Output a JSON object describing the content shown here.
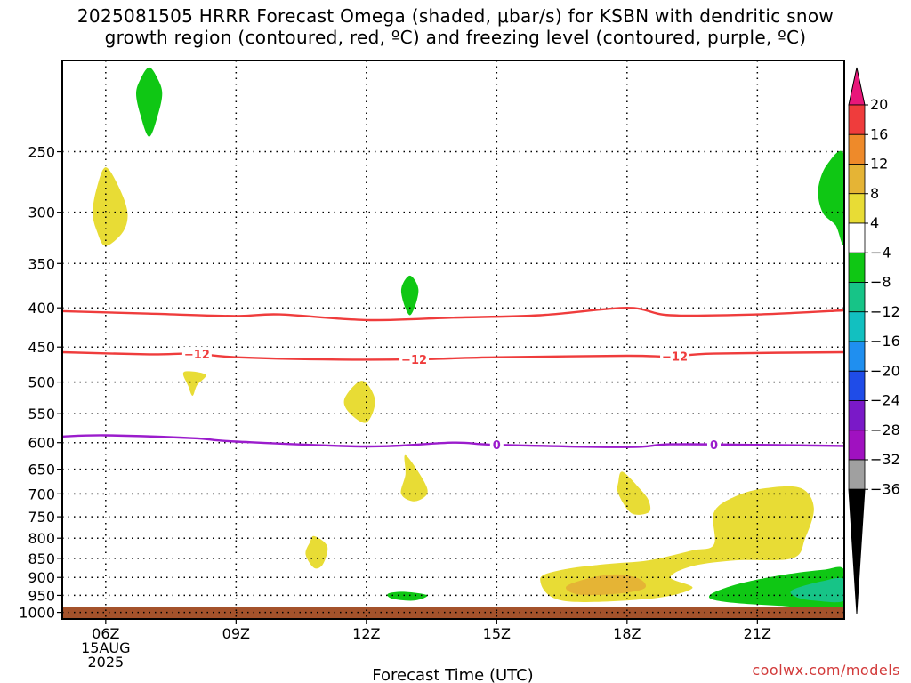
{
  "title": {
    "line1": "2025081505 HRRR Forecast Omega (shaded, μbar/s) for KSBN with dendritic snow",
    "line2": "growth region (contoured, red, ºC) and freezing level (contoured, purple, ºC)"
  },
  "credit": "coolwx.com/models",
  "chart_data": {
    "type": "contour",
    "xlabel": "Forecast Time (UTC)",
    "x_ticks": [
      "06Z",
      "09Z",
      "12Z",
      "15Z",
      "18Z",
      "21Z"
    ],
    "x_date_label": [
      "15AUG",
      "2025"
    ],
    "y_ticks": [
      250,
      300,
      350,
      400,
      450,
      500,
      550,
      600,
      650,
      700,
      750,
      800,
      850,
      900,
      950,
      1000
    ],
    "y_scale": "log",
    "y_inverted": true,
    "x_range_hours": [
      5.0,
      23.0
    ],
    "y_range_hpa": [
      190,
      1020
    ],
    "grid": true,
    "colorbar": {
      "labels": [
        "20",
        "16",
        "12",
        "8",
        "4",
        "−4",
        "−8",
        "−12",
        "−16",
        "−20",
        "−24",
        "−28",
        "−32",
        "−36"
      ],
      "colors": [
        "#e8177a",
        "#ef3c3c",
        "#ee8a2a",
        "#e5b435",
        "#e8dc35",
        "#ffffff",
        "#0fc714",
        "#17c487",
        "#12c0c0",
        "#1f8ff0",
        "#1f4ce8",
        "#7a19c8",
        "#a011c0",
        "#a0a0a0",
        "#000000"
      ]
    },
    "contours": [
      {
        "color": "#ef3c3c",
        "label": "",
        "points": [
          [
            5.0,
            404
          ],
          [
            7,
            407
          ],
          [
            9,
            410
          ],
          [
            10,
            408
          ],
          [
            12,
            415
          ],
          [
            14,
            412
          ],
          [
            16,
            409
          ],
          [
            18,
            400
          ],
          [
            19,
            409
          ],
          [
            21,
            408
          ],
          [
            23,
            403
          ]
        ]
      },
      {
        "color": "#ef3c3c",
        "label": "−12",
        "label_x": [
          8.1,
          13.1,
          19.1
        ],
        "points": [
          [
            5.0,
            457
          ],
          [
            7,
            460
          ],
          [
            8,
            459
          ],
          [
            9,
            464
          ],
          [
            11,
            467
          ],
          [
            13,
            467
          ],
          [
            15,
            464
          ],
          [
            18,
            462
          ],
          [
            19,
            463
          ],
          [
            20,
            459
          ],
          [
            23,
            457
          ]
        ]
      },
      {
        "color": "#9b1ccc",
        "label": "0",
        "label_x": [
          15.0,
          20.0
        ],
        "points": [
          [
            5.0,
            589
          ],
          [
            6,
            587
          ],
          [
            8,
            592
          ],
          [
            9,
            598
          ],
          [
            12,
            607
          ],
          [
            14,
            600
          ],
          [
            15,
            604
          ],
          [
            18,
            608
          ],
          [
            19,
            603
          ],
          [
            21,
            604
          ],
          [
            23,
            606
          ]
        ]
      }
    ],
    "shaded": [
      {
        "color": "#0fc714",
        "value": "-4 to -8",
        "points": [
          [
            7.0,
            194
          ],
          [
            7.2,
            201
          ],
          [
            7.3,
            210
          ],
          [
            7.2,
            224
          ],
          [
            7.0,
            239
          ],
          [
            6.8,
            224
          ],
          [
            6.7,
            210
          ],
          [
            6.8,
            201
          ]
        ]
      },
      {
        "color": "#e8dc35",
        "value": "4 to 8",
        "points": [
          [
            6.0,
            262
          ],
          [
            6.3,
            278
          ],
          [
            6.5,
            300
          ],
          [
            6.4,
            318
          ],
          [
            6.0,
            332
          ],
          [
            5.8,
            318
          ],
          [
            5.7,
            300
          ],
          [
            5.8,
            278
          ]
        ]
      },
      {
        "color": "#0fc714",
        "value": "-4 to -8",
        "points": [
          [
            23.0,
            253
          ],
          [
            22.6,
            260
          ],
          [
            22.4,
            280
          ],
          [
            22.5,
            300
          ],
          [
            22.8,
            312
          ],
          [
            23.0,
            328
          ]
        ]
      },
      {
        "color": "#0fc714",
        "value": "-4 to -8",
        "points": [
          [
            13.0,
            363
          ],
          [
            13.2,
            380
          ],
          [
            13.0,
            409
          ],
          [
            12.8,
            380
          ]
        ]
      },
      {
        "color": "#e8dc35",
        "value": "4 to 8",
        "points": [
          [
            7.8,
            485
          ],
          [
            8.3,
            489
          ],
          [
            8.1,
            505
          ],
          [
            8.0,
            521
          ],
          [
            7.9,
            506
          ]
        ]
      },
      {
        "color": "#e8dc35",
        "value": "4 to 8",
        "points": [
          [
            11.9,
            498
          ],
          [
            12.2,
            528
          ],
          [
            12.0,
            565
          ],
          [
            11.6,
            548
          ],
          [
            11.5,
            525
          ]
        ]
      },
      {
        "color": "#e8dc35",
        "value": "4 to 8",
        "points": [
          [
            12.9,
            623
          ],
          [
            13.3,
            670
          ],
          [
            13.4,
            700
          ],
          [
            13.1,
            716
          ],
          [
            12.8,
            700
          ],
          [
            12.9,
            660
          ]
        ]
      },
      {
        "color": "#e8dc35",
        "value": "4 to 8",
        "points": [
          [
            17.9,
            655
          ],
          [
            18.3,
            690
          ],
          [
            18.5,
            715
          ],
          [
            18.5,
            740
          ],
          [
            18.1,
            742
          ],
          [
            17.8,
            700
          ],
          [
            17.8,
            675
          ]
        ]
      },
      {
        "color": "#e8dc35",
        "value": "4 to 8",
        "points": [
          [
            10.8,
            795
          ],
          [
            11.1,
            820
          ],
          [
            11.0,
            865
          ],
          [
            10.8,
            875
          ],
          [
            10.6,
            840
          ],
          [
            10.7,
            810
          ]
        ]
      },
      {
        "color": "#0fc714",
        "value": "-4 to -8",
        "points": [
          [
            12.5,
            945
          ],
          [
            12.9,
            940
          ],
          [
            13.4,
            950
          ],
          [
            13.1,
            965
          ],
          [
            12.6,
            960
          ]
        ]
      },
      {
        "color": "#e8dc35",
        "value": "4 to 8",
        "points": [
          [
            16.0,
            905
          ],
          [
            16.5,
            880
          ],
          [
            17.5,
            865
          ],
          [
            18.5,
            855
          ],
          [
            19.5,
            830
          ],
          [
            20.0,
            815
          ],
          [
            20.0,
            740
          ],
          [
            20.5,
            705
          ],
          [
            21.2,
            688
          ],
          [
            22.0,
            688
          ],
          [
            22.3,
            730
          ],
          [
            22.1,
            800
          ],
          [
            21.8,
            850
          ],
          [
            20.5,
            855
          ],
          [
            19.5,
            870
          ],
          [
            19.0,
            900
          ],
          [
            19.5,
            930
          ],
          [
            18.5,
            960
          ],
          [
            16.5,
            965
          ]
        ]
      },
      {
        "color": "#e5b435",
        "value": "8 to 12",
        "points": [
          [
            16.6,
            925
          ],
          [
            17.2,
            900
          ],
          [
            17.8,
            892
          ],
          [
            18.3,
            905
          ],
          [
            18.4,
            930
          ],
          [
            17.8,
            945
          ],
          [
            16.9,
            948
          ]
        ]
      },
      {
        "color": "#0fc714",
        "value": "-4 to -8",
        "points": [
          [
            19.9,
            950
          ],
          [
            20.5,
            920
          ],
          [
            21.5,
            895
          ],
          [
            22.5,
            880
          ],
          [
            23.0,
            880
          ],
          [
            23.0,
            985
          ],
          [
            21.5,
            980
          ],
          [
            20.2,
            968
          ]
        ]
      },
      {
        "color": "#17c487",
        "value": "-8 to -12",
        "points": [
          [
            21.8,
            935
          ],
          [
            22.5,
            910
          ],
          [
            23.0,
            905
          ],
          [
            23.0,
            965
          ],
          [
            22.3,
            965
          ],
          [
            21.9,
            955
          ]
        ]
      }
    ],
    "surface": {
      "color": "#a4522b",
      "pressure": 985
    }
  }
}
